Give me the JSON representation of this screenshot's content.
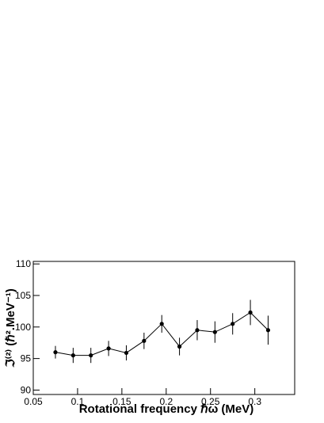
{
  "chart_data": {
    "type": "errorline",
    "x_label": "Rotational frequency ℏω (MeV)",
    "y_label": "ℑ⁽²⁾ (ℏ².MeV⁻¹)",
    "x": [
      0.075,
      0.095,
      0.115,
      0.135,
      0.155,
      0.175,
      0.195,
      0.215,
      0.235,
      0.255,
      0.275,
      0.295,
      0.315
    ],
    "values": [
      96.0,
      95.5,
      95.5,
      96.6,
      95.9,
      97.8,
      100.5,
      96.9,
      99.5,
      99.2,
      100.5,
      102.3,
      99.5
    ],
    "errors": [
      1.0,
      1.2,
      1.2,
      1.2,
      1.2,
      1.3,
      1.4,
      1.4,
      1.6,
      1.7,
      1.7,
      2.0,
      2.3
    ],
    "color": "#000000",
    "xlim": [
      0.05,
      0.345
    ],
    "ylim": [
      89.3,
      110.4
    ],
    "xticks": [
      0.05,
      0.1,
      0.15,
      0.2,
      0.25,
      0.3
    ],
    "yticks": [
      90,
      95,
      100,
      105,
      110
    ]
  }
}
